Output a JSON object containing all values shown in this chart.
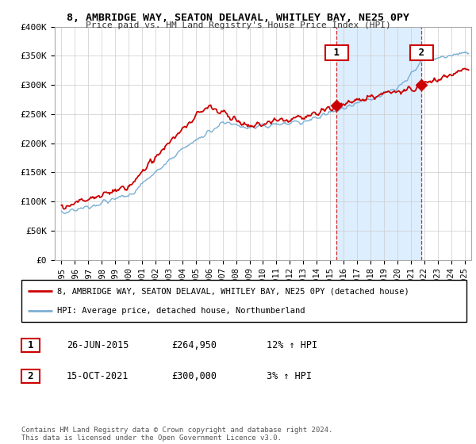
{
  "title": "8, AMBRIDGE WAY, SEATON DELAVAL, WHITLEY BAY, NE25 0PY",
  "subtitle": "Price paid vs. HM Land Registry's House Price Index (HPI)",
  "ylabel_ticks": [
    "£0",
    "£50K",
    "£100K",
    "£150K",
    "£200K",
    "£250K",
    "£300K",
    "£350K",
    "£400K"
  ],
  "ytick_values": [
    0,
    50000,
    100000,
    150000,
    200000,
    250000,
    300000,
    350000,
    400000
  ],
  "ylim": [
    0,
    400000
  ],
  "legend_line1": "8, AMBRIDGE WAY, SEATON DELAVAL, WHITLEY BAY, NE25 0PY (detached house)",
  "legend_line2": "HPI: Average price, detached house, Northumberland",
  "sale1_date": "26-JUN-2015",
  "sale1_price": "£264,950",
  "sale1_hpi": "12% ↑ HPI",
  "sale2_date": "15-OCT-2021",
  "sale2_price": "£300,000",
  "sale2_hpi": "3% ↑ HPI",
  "copyright": "Contains HM Land Registry data © Crown copyright and database right 2024.\nThis data is licensed under the Open Government Licence v3.0.",
  "line_color_red": "#cc0000",
  "line_color_blue": "#7bafd4",
  "shade_color": "#ddeeff",
  "sale1_x": 2015.49,
  "sale2_x": 2021.79,
  "sale1_y": 264950,
  "sale2_y": 300000,
  "background_color": "#ffffff",
  "grid_color": "#cccccc",
  "xlim_left": 1994.5,
  "xlim_right": 2025.5
}
